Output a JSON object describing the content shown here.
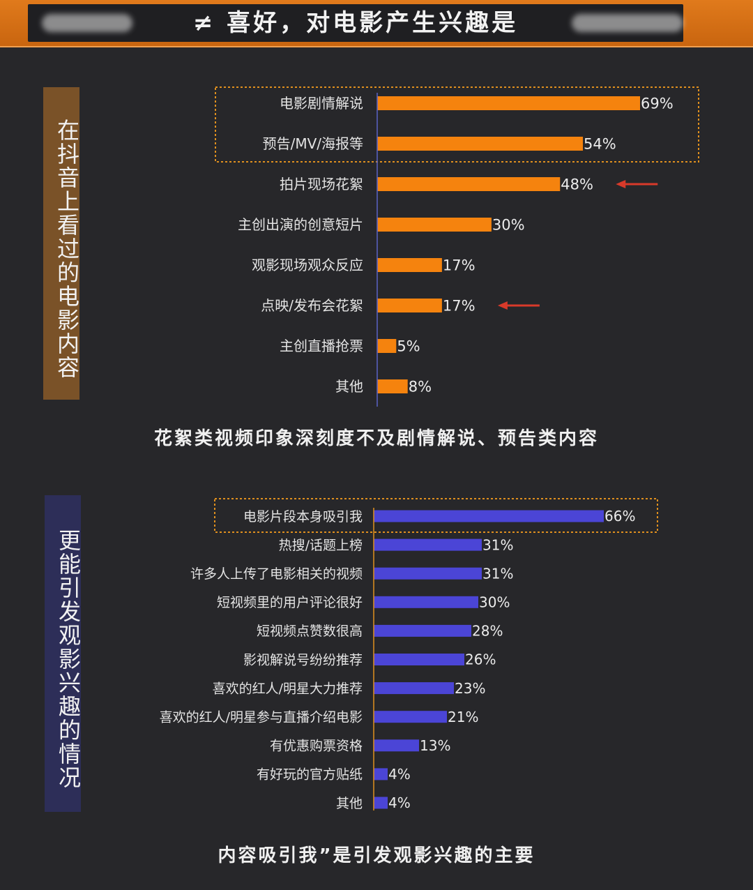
{
  "banner": {
    "title": "≠ 喜好，对电影产生兴趣是"
  },
  "section1": {
    "side_label": "在抖音上看过的电影内容",
    "caption": "花絮类视频印象深刻度不及剧情解说、预告类内容"
  },
  "section2": {
    "side_label": "更能引发观影兴趣的情况",
    "caption": "内容吸引我”是引发观影兴趣的主要"
  },
  "colors": {
    "orange_bar": "#f5830e",
    "purple_bar": "#4b45d6",
    "highlight_box": "#e0901e",
    "arrow": "#d83a2a",
    "brown_panel": "#7a5228",
    "navy_panel": "#2d2e58"
  },
  "chart_data": [
    {
      "type": "bar",
      "orientation": "horizontal",
      "categories": [
        "电影剧情解说",
        "预告/MV/海报等",
        "拍片现场花絮",
        "主创出演的创意短片",
        "观影现场观众反应",
        "点映/发布会花絮",
        "主创直播抢票",
        "其他"
      ],
      "values": [
        69,
        54,
        48,
        30,
        17,
        17,
        5,
        8
      ],
      "labels": [
        "69%",
        "54%",
        "48%",
        "30%",
        "17%",
        "17%",
        "5%",
        "8%"
      ],
      "highlighted": [
        0,
        1
      ],
      "arrows": [
        2,
        5
      ],
      "xlim": [
        0,
        69
      ]
    },
    {
      "type": "bar",
      "orientation": "horizontal",
      "categories": [
        "电影片段本身吸引我",
        "热搜/话题上榜",
        "许多人上传了电影相关的视频",
        "短视频里的用户评论很好",
        "短视频点赞数很高",
        "影视解说号纷纷推荐",
        "喜欢的红人/明星大力推荐",
        "喜欢的红人/明星参与直播介绍电影",
        "有优惠购票资格",
        "有好玩的官方贴纸",
        "其他"
      ],
      "values": [
        66,
        31,
        31,
        30,
        28,
        26,
        23,
        21,
        13,
        4,
        4
      ],
      "labels": [
        "66%",
        "31%",
        "31%",
        "30%",
        "28%",
        "26%",
        "23%",
        "21%",
        "13%",
        "4%",
        "4%"
      ],
      "highlighted": [
        0
      ],
      "xlim": [
        0,
        66
      ]
    }
  ]
}
